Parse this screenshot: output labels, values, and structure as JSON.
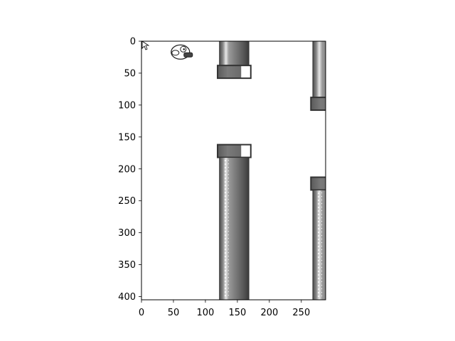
{
  "game": {
    "frame_width": 288,
    "frame_height": 405,
    "bird": {
      "x": 72,
      "y": 17
    },
    "pipe_pairs": [
      {
        "x": 122,
        "top_gap_edge": 58,
        "bottom_gap_edge": 162
      },
      {
        "x": 268,
        "top_gap_edge": 108,
        "bottom_gap_edge": 213
      }
    ],
    "colors": {
      "pipe_dark": "#3c3c3c",
      "pipe_mid": "#6a6a6a",
      "pipe_light": "#bdbdbd",
      "background": "#ffffff"
    }
  },
  "axes": {
    "x_ticks": [
      0,
      50,
      100,
      150,
      200,
      250
    ],
    "y_ticks": [
      0,
      50,
      100,
      150,
      200,
      250,
      300,
      350,
      400
    ]
  },
  "cursor": {
    "icon": "mouse-pointer-icon"
  }
}
